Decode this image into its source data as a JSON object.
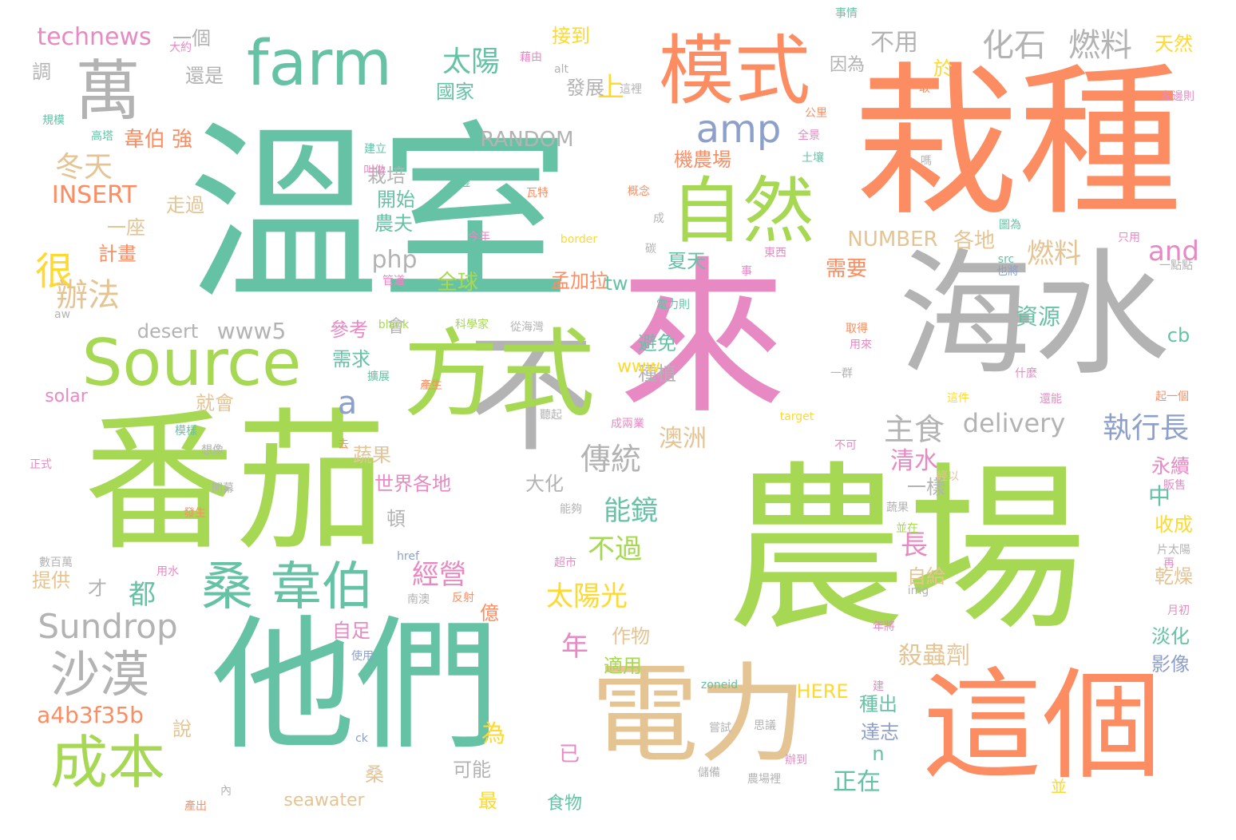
{
  "wordcloud": {
    "palette": {
      "green": "#66C2A5",
      "orange": "#FC8D62",
      "blue": "#8DA0CB",
      "pink": "#E78AC3",
      "lime": "#A6D854",
      "yellow": "#FFD92F",
      "tan": "#E5C494",
      "gray": "#B3B3B3"
    },
    "words": [
      {
        "text": "溫室",
        "color": "green"
      },
      {
        "text": "栽種",
        "color": "orange"
      },
      {
        "text": "農場",
        "color": "lime"
      },
      {
        "text": "來",
        "color": "pink"
      },
      {
        "text": "番茄",
        "color": "lime"
      },
      {
        "text": "他們",
        "color": "green"
      },
      {
        "text": "海水",
        "color": "gray"
      },
      {
        "text": "不",
        "color": "gray"
      },
      {
        "text": "電力",
        "color": "tan"
      },
      {
        "text": "這個",
        "color": "orange"
      },
      {
        "text": "方式",
        "color": "lime"
      },
      {
        "text": "模式",
        "color": "orange"
      },
      {
        "text": "自然",
        "color": "lime"
      },
      {
        "text": "Source",
        "color": "lime"
      },
      {
        "text": "farm",
        "color": "green"
      },
      {
        "text": "萬",
        "color": "gray"
      },
      {
        "text": "桑 韋伯",
        "color": "green"
      },
      {
        "text": "成本",
        "color": "lime"
      },
      {
        "text": "沙漠",
        "color": "gray"
      },
      {
        "text": "Sundrop",
        "color": "gray"
      },
      {
        "text": "amp",
        "color": "blue"
      },
      {
        "text": "化石",
        "color": "gray"
      },
      {
        "text": "燃料",
        "color": "gray"
      },
      {
        "text": "執行長",
        "color": "blue"
      },
      {
        "text": "主食",
        "color": "gray"
      },
      {
        "text": "傳統",
        "color": "gray"
      },
      {
        "text": "太陽",
        "color": "green"
      },
      {
        "text": "很",
        "color": "yellow"
      },
      {
        "text": "辦法",
        "color": "tan"
      },
      {
        "text": "冬天",
        "color": "tan"
      },
      {
        "text": "a",
        "color": "blue"
      },
      {
        "text": "and",
        "color": "pink"
      },
      {
        "text": "能鏡",
        "color": "green"
      },
      {
        "text": "經營",
        "color": "pink"
      },
      {
        "text": "太陽光",
        "color": "yellow"
      },
      {
        "text": "delivery",
        "color": "gray"
      },
      {
        "text": "technews",
        "color": "pink"
      },
      {
        "text": "上",
        "color": "yellow"
      },
      {
        "text": "都",
        "color": "green"
      },
      {
        "text": "不過",
        "color": "lime"
      },
      {
        "text": "INSERT",
        "color": "orange"
      },
      {
        "text": "RANDOM",
        "color": "gray"
      },
      {
        "text": "燃料",
        "color": "tan"
      },
      {
        "text": "NUMBER",
        "color": "tan"
      },
      {
        "text": "php",
        "color": "gray"
      },
      {
        "text": "澳洲",
        "color": "tan"
      },
      {
        "text": "年",
        "color": "pink"
      },
      {
        "text": "長",
        "color": "pink"
      },
      {
        "text": "www5",
        "color": "gray"
      },
      {
        "text": "desert",
        "color": "gray"
      },
      {
        "text": "a4b3f35b",
        "color": "orange"
      },
      {
        "text": "殺蟲劑",
        "color": "tan"
      },
      {
        "text": "清水",
        "color": "pink"
      },
      {
        "text": "資源",
        "color": "green"
      },
      {
        "text": "正在",
        "color": "green"
      },
      {
        "text": "不用",
        "color": "gray"
      },
      {
        "text": "一個",
        "color": "gray"
      },
      {
        "text": "韋伯 強",
        "color": "orange"
      },
      {
        "text": "栽培",
        "color": "gray"
      },
      {
        "text": "開始",
        "color": "green"
      },
      {
        "text": "農夫",
        "color": "green"
      },
      {
        "text": "全球",
        "color": "lime"
      },
      {
        "text": "需要",
        "color": "orange"
      },
      {
        "text": "各地",
        "color": "tan"
      },
      {
        "text": "需求",
        "color": "green"
      },
      {
        "text": "參考",
        "color": "pink"
      },
      {
        "text": "世界各地",
        "color": "pink"
      },
      {
        "text": "大化",
        "color": "gray"
      },
      {
        "text": "頓",
        "color": "gray"
      },
      {
        "text": "一樣",
        "color": "gray"
      },
      {
        "text": "中",
        "color": "green"
      },
      {
        "text": "收成",
        "color": "yellow"
      },
      {
        "text": "永續",
        "color": "pink"
      },
      {
        "text": "乾燥",
        "color": "tan"
      },
      {
        "text": "淡化",
        "color": "green"
      },
      {
        "text": "影像",
        "color": "blue"
      },
      {
        "text": "自給",
        "color": "tan"
      },
      {
        "text": "自足",
        "color": "pink"
      },
      {
        "text": "作物",
        "color": "tan"
      },
      {
        "text": "適用",
        "color": "lime"
      },
      {
        "text": "為",
        "color": "yellow"
      },
      {
        "text": "億",
        "color": "orange"
      },
      {
        "text": "發展",
        "color": "gray"
      },
      {
        "text": "國家",
        "color": "green"
      },
      {
        "text": "接到",
        "color": "yellow"
      },
      {
        "text": "機農場",
        "color": "orange"
      },
      {
        "text": "夏天",
        "color": "green"
      },
      {
        "text": "孟加拉",
        "color": "orange"
      },
      {
        "text": "避免",
        "color": "green"
      },
      {
        "text": "種植",
        "color": "gray"
      },
      {
        "text": "www",
        "color": "yellow"
      },
      {
        "text": "tw",
        "color": "green"
      },
      {
        "text": "cb",
        "color": "green"
      },
      {
        "text": "HERE",
        "color": "yellow"
      },
      {
        "text": "種出",
        "color": "green"
      },
      {
        "text": "達志",
        "color": "blue"
      },
      {
        "text": "n",
        "color": "green"
      },
      {
        "text": "seawater",
        "color": "tan"
      },
      {
        "text": "可能",
        "color": "gray"
      },
      {
        "text": "最",
        "color": "yellow"
      },
      {
        "text": "桑",
        "color": "tan"
      },
      {
        "text": "蔬果",
        "color": "tan"
      },
      {
        "text": "已",
        "color": "pink"
      },
      {
        "text": "提供",
        "color": "tan"
      },
      {
        "text": "才",
        "color": "gray"
      },
      {
        "text": "就會",
        "color": "tan"
      },
      {
        "text": "solar",
        "color": "pink"
      },
      {
        "text": "說",
        "color": "tan"
      },
      {
        "text": "走過",
        "color": "tan"
      },
      {
        "text": "計畫",
        "color": "orange"
      },
      {
        "text": "一座",
        "color": "tan"
      },
      {
        "text": "還是",
        "color": "gray"
      },
      {
        "text": "調",
        "color": "gray"
      },
      {
        "text": "於",
        "color": "yellow"
      },
      {
        "text": "因為",
        "color": "gray"
      },
      {
        "text": "天然",
        "color": "yellow"
      },
      {
        "text": "並",
        "color": "yellow"
      },
      {
        "text": "會",
        "color": "gray"
      },
      {
        "text": "大約",
        "color": "pink"
      },
      {
        "text": "藉由",
        "color": "pink"
      },
      {
        "text": "alt",
        "color": "gray"
      },
      {
        "text": "這裡",
        "color": "gray"
      },
      {
        "text": "事情",
        "color": "green"
      },
      {
        "text": "取",
        "color": "orange"
      },
      {
        "text": "規模",
        "color": "green"
      },
      {
        "text": "高塔",
        "color": "green"
      },
      {
        "text": "建立",
        "color": "green"
      },
      {
        "text": "叫做",
        "color": "pink"
      },
      {
        "text": "右邊",
        "color": "green"
      },
      {
        "text": "瓦特",
        "color": "orange"
      },
      {
        "text": "概念",
        "color": "orange"
      },
      {
        "text": "公里",
        "color": "orange"
      },
      {
        "text": "全景",
        "color": "pink"
      },
      {
        "text": "土壤",
        "color": "green"
      },
      {
        "text": "左邊則",
        "color": "pink"
      },
      {
        "text": "嗎",
        "color": "gray"
      },
      {
        "text": "成",
        "color": "gray"
      },
      {
        "text": "今年",
        "color": "pink"
      },
      {
        "text": "border",
        "color": "yellow"
      },
      {
        "text": "碳",
        "color": "gray"
      },
      {
        "text": "圖為",
        "color": "green"
      },
      {
        "text": "只用",
        "color": "pink"
      },
      {
        "text": "src",
        "color": "green"
      },
      {
        "text": "也將",
        "color": "blue"
      },
      {
        "text": "一點點",
        "color": "gray"
      },
      {
        "text": "東西",
        "color": "pink"
      },
      {
        "text": "事",
        "color": "pink"
      },
      {
        "text": "管道",
        "color": "pink"
      },
      {
        "text": "aw",
        "color": "gray"
      },
      {
        "text": "blank",
        "color": "lime"
      },
      {
        "text": "科學家",
        "color": "lime"
      },
      {
        "text": "從海灣",
        "color": "gray"
      },
      {
        "text": "電力則",
        "color": "green"
      },
      {
        "text": "取得",
        "color": "orange"
      },
      {
        "text": "用來",
        "color": "pink"
      },
      {
        "text": "一群",
        "color": "gray"
      },
      {
        "text": "什麼",
        "color": "pink"
      },
      {
        "text": "擴展",
        "color": "green"
      },
      {
        "text": "產生",
        "color": "orange"
      },
      {
        "text": "這件",
        "color": "yellow"
      },
      {
        "text": "還能",
        "color": "pink"
      },
      {
        "text": "起一個",
        "color": "orange"
      },
      {
        "text": "target",
        "color": "yellow"
      },
      {
        "text": "聽起",
        "color": "gray"
      },
      {
        "text": "成兩業",
        "color": "pink"
      },
      {
        "text": "模樣",
        "color": "green"
      },
      {
        "text": "想像",
        "color": "gray"
      },
      {
        "text": "去",
        "color": "orange"
      },
      {
        "text": "不可",
        "color": "pink"
      },
      {
        "text": "正式",
        "color": "pink"
      },
      {
        "text": "開幕",
        "color": "gray"
      },
      {
        "text": "經以",
        "color": "tan"
      },
      {
        "text": "販售",
        "color": "pink"
      },
      {
        "text": "能夠",
        "color": "gray"
      },
      {
        "text": "發生",
        "color": "orange"
      },
      {
        "text": "蔬果",
        "color": "gray"
      },
      {
        "text": "並在",
        "color": "lime"
      },
      {
        "text": "數百萬",
        "color": "gray"
      },
      {
        "text": "href",
        "color": "blue"
      },
      {
        "text": "超市",
        "color": "pink"
      },
      {
        "text": "用水",
        "color": "pink"
      },
      {
        "text": "南澳",
        "color": "gray"
      },
      {
        "text": "反射",
        "color": "orange"
      },
      {
        "text": "img",
        "color": "gray"
      },
      {
        "text": "片太陽",
        "color": "gray"
      },
      {
        "text": "再",
        "color": "pink"
      },
      {
        "text": "月初",
        "color": "pink"
      },
      {
        "text": "年將",
        "color": "pink"
      },
      {
        "text": "使用",
        "color": "blue"
      },
      {
        "text": "zoneid",
        "color": "green"
      },
      {
        "text": "建",
        "color": "pink"
      },
      {
        "text": "嘗試",
        "color": "gray"
      },
      {
        "text": "思議",
        "color": "gray"
      },
      {
        "text": "ck",
        "color": "blue"
      },
      {
        "text": "辦到",
        "color": "pink"
      },
      {
        "text": "農場裡",
        "color": "gray"
      },
      {
        "text": "儲備",
        "color": "gray"
      },
      {
        "text": "內",
        "color": "gray"
      },
      {
        "text": "產出",
        "color": "orange"
      },
      {
        "text": "食物",
        "color": "green"
      }
    ]
  }
}
